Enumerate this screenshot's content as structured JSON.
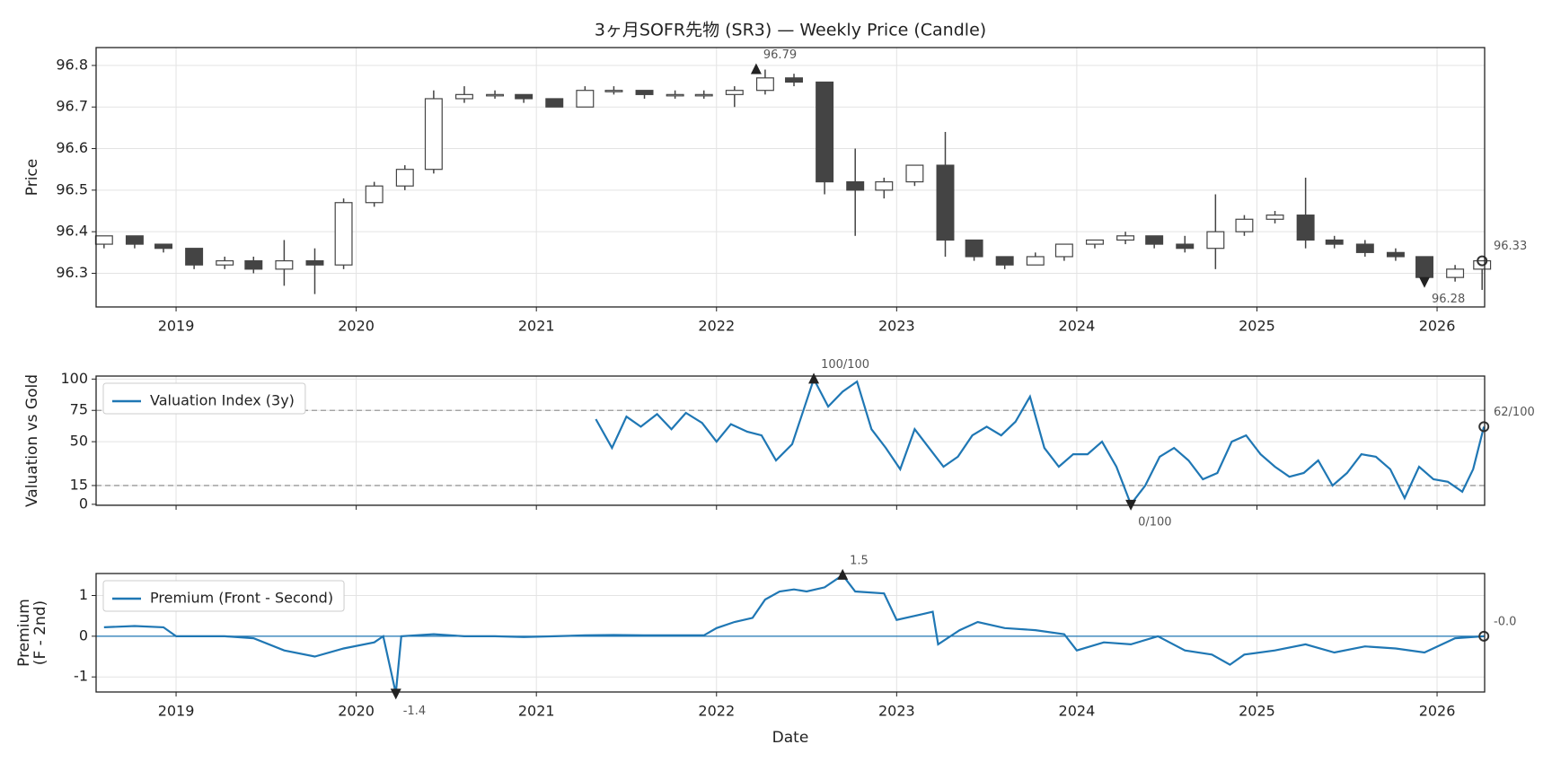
{
  "chart_data": [
    {
      "type": "candlestick",
      "title": "3ヶ月SOFR先物 (SR3) — Weekly Price (Candle)",
      "ylabel": "Price",
      "color": "#444444",
      "x": [
        2018.6,
        2018.77,
        2018.93,
        2019.1,
        2019.27,
        2019.43,
        2019.6,
        2019.77,
        2019.93,
        2020.1,
        2020.27,
        2020.43,
        2020.6,
        2020.77,
        2020.93,
        2021.1,
        2021.27,
        2021.43,
        2021.6,
        2021.77,
        2021.93,
        2022.1,
        2022.27,
        2022.43,
        2022.6,
        2022.77,
        2022.93,
        2023.1,
        2023.27,
        2023.43,
        2023.6,
        2023.77,
        2023.93,
        2024.1,
        2024.27,
        2024.43,
        2024.6,
        2024.77,
        2024.93,
        2025.1,
        2025.27,
        2025.43,
        2025.6,
        2025.77,
        2025.93,
        2026.1,
        2026.25
      ],
      "open": [
        96.37,
        96.39,
        96.37,
        96.36,
        96.32,
        96.33,
        96.31,
        96.33,
        96.32,
        96.47,
        96.51,
        96.55,
        96.72,
        96.73,
        96.73,
        96.72,
        96.7,
        96.74,
        96.74,
        96.73,
        96.73,
        96.73,
        96.74,
        96.77,
        96.76,
        96.52,
        96.5,
        96.52,
        96.56,
        96.38,
        96.34,
        96.32,
        96.34,
        96.37,
        96.38,
        96.39,
        96.37,
        96.36,
        96.4,
        96.43,
        96.44,
        96.38,
        96.37,
        96.35,
        96.34,
        96.29,
        96.31
      ],
      "high": [
        96.39,
        96.39,
        96.37,
        96.36,
        96.34,
        96.34,
        96.38,
        96.36,
        96.48,
        96.52,
        96.56,
        96.74,
        96.75,
        96.74,
        96.73,
        96.72,
        96.75,
        96.75,
        96.74,
        96.74,
        96.74,
        96.75,
        96.79,
        96.78,
        96.76,
        96.6,
        96.53,
        96.56,
        96.64,
        96.38,
        96.34,
        96.35,
        96.37,
        96.38,
        96.4,
        96.39,
        96.39,
        96.49,
        96.44,
        96.45,
        96.53,
        96.39,
        96.38,
        96.36,
        96.34,
        96.32,
        96.33
      ],
      "low": [
        96.36,
        96.36,
        96.35,
        96.31,
        96.31,
        96.3,
        96.27,
        96.25,
        96.31,
        96.46,
        96.5,
        96.54,
        96.71,
        96.72,
        96.71,
        96.7,
        96.7,
        96.73,
        96.72,
        96.72,
        96.72,
        96.7,
        96.73,
        96.75,
        96.49,
        96.39,
        96.48,
        96.51,
        96.34,
        96.33,
        96.31,
        96.32,
        96.33,
        96.36,
        96.37,
        96.36,
        96.35,
        96.31,
        96.39,
        96.42,
        96.36,
        96.36,
        96.34,
        96.33,
        96.28,
        96.28,
        96.26
      ],
      "close": [
        96.39,
        96.37,
        96.36,
        96.32,
        96.33,
        96.31,
        96.33,
        96.32,
        96.47,
        96.51,
        96.55,
        96.72,
        96.73,
        96.73,
        96.72,
        96.7,
        96.74,
        96.74,
        96.73,
        96.73,
        96.73,
        96.74,
        96.77,
        96.76,
        96.52,
        96.5,
        96.52,
        96.56,
        96.38,
        96.34,
        96.32,
        96.34,
        96.37,
        96.38,
        96.39,
        96.37,
        96.36,
        96.4,
        96.43,
        96.44,
        96.38,
        96.37,
        96.35,
        96.34,
        96.29,
        96.31,
        96.33
      ],
      "xlim": [
        2018.556,
        2026.264
      ],
      "xticks": [
        2019,
        2020,
        2021,
        2022,
        2023,
        2024,
        2025,
        2026
      ],
      "ylim": [
        96.219,
        96.843
      ],
      "yticks": [
        96.3,
        96.4,
        96.5,
        96.6,
        96.7,
        96.8
      ],
      "grid": true,
      "show_xtick_labels": true,
      "annotations": [
        {
          "label": "96.79",
          "x": 2022.22,
          "y": 96.79,
          "marker": "up"
        },
        {
          "label": "96.28",
          "x": 2025.93,
          "y": 96.28,
          "marker": "down"
        },
        {
          "label": "96.33",
          "x": 2026.25,
          "y": 96.33,
          "marker": "circle"
        }
      ]
    },
    {
      "type": "line",
      "ylabel": "Valuation vs Gold",
      "series": [
        {
          "name": "Valuation Index (3y)",
          "color": "#1f77b4",
          "x": [
            2021.33,
            2021.42,
            2021.5,
            2021.58,
            2021.67,
            2021.75,
            2021.83,
            2021.92,
            2022.0,
            2022.08,
            2022.17,
            2022.25,
            2022.33,
            2022.42,
            2022.54,
            2022.62,
            2022.7,
            2022.78,
            2022.86,
            2022.94,
            2023.02,
            2023.1,
            2023.18,
            2023.26,
            2023.34,
            2023.42,
            2023.5,
            2023.58,
            2023.66,
            2023.74,
            2023.82,
            2023.9,
            2023.98,
            2024.06,
            2024.14,
            2024.22,
            2024.3,
            2024.38,
            2024.46,
            2024.54,
            2024.62,
            2024.7,
            2024.78,
            2024.86,
            2024.94,
            2025.02,
            2025.1,
            2025.18,
            2025.26,
            2025.34,
            2025.42,
            2025.5,
            2025.58,
            2025.66,
            2025.74,
            2025.82,
            2025.9,
            2025.98,
            2026.06,
            2026.14,
            2026.2,
            2026.26
          ],
          "values": [
            68,
            45,
            70,
            62,
            72,
            60,
            73,
            65,
            50,
            64,
            58,
            55,
            35,
            48,
            100,
            78,
            90,
            98,
            60,
            45,
            28,
            60,
            45,
            30,
            38,
            55,
            62,
            55,
            66,
            86,
            45,
            30,
            40,
            40,
            50,
            30,
            0,
            15,
            38,
            45,
            35,
            20,
            25,
            50,
            55,
            40,
            30,
            22,
            25,
            35,
            15,
            25,
            40,
            38,
            28,
            5,
            30,
            20,
            18,
            10,
            28,
            62
          ]
        }
      ],
      "xlim": [
        2018.556,
        2026.264
      ],
      "xticks": [
        2019,
        2020,
        2021,
        2022,
        2023,
        2024,
        2025,
        2026
      ],
      "ylim": [
        -0.8,
        102.4
      ],
      "yticks": [
        0,
        15,
        50,
        75,
        100
      ],
      "hlines": [
        15,
        75
      ],
      "grid": true,
      "legend": "upper left",
      "show_xtick_labels": false,
      "annotations": [
        {
          "label": "100/100",
          "x": 2022.54,
          "y": 100,
          "marker": "up"
        },
        {
          "label": "0/100",
          "x": 2024.3,
          "y": 0,
          "marker": "down"
        },
        {
          "label": "62/100",
          "x": 2026.26,
          "y": 62,
          "marker": "circle"
        }
      ]
    },
    {
      "type": "line",
      "ylabel": [
        "Premium",
        "(F - 2nd)"
      ],
      "xlabel": "Date",
      "series": [
        {
          "name": "Premium (Front - Second)",
          "color": "#1f77b4",
          "x": [
            2018.6,
            2018.77,
            2018.93,
            2019.0,
            2019.27,
            2019.43,
            2019.6,
            2019.77,
            2019.93,
            2020.1,
            2020.15,
            2020.22,
            2020.25,
            2020.43,
            2020.6,
            2020.77,
            2020.93,
            2021.1,
            2021.27,
            2021.43,
            2021.6,
            2021.77,
            2021.93,
            2022.0,
            2022.1,
            2022.2,
            2022.27,
            2022.35,
            2022.43,
            2022.5,
            2022.6,
            2022.7,
            2022.77,
            2022.93,
            2023.0,
            2023.15,
            2023.2,
            2023.23,
            2023.35,
            2023.45,
            2023.6,
            2023.77,
            2023.93,
            2024.0,
            2024.15,
            2024.3,
            2024.45,
            2024.6,
            2024.75,
            2024.85,
            2024.93,
            2025.1,
            2025.27,
            2025.43,
            2025.6,
            2025.77,
            2025.93,
            2026.1,
            2026.26
          ],
          "values": [
            0.22,
            0.25,
            0.22,
            0.0,
            0.0,
            -0.05,
            -0.35,
            -0.5,
            -0.3,
            -0.15,
            0.0,
            -1.4,
            0.0,
            0.05,
            0.0,
            0.0,
            -0.02,
            0.0,
            0.02,
            0.03,
            0.02,
            0.02,
            0.02,
            0.2,
            0.35,
            0.45,
            0.9,
            1.1,
            1.15,
            1.1,
            1.2,
            1.5,
            1.1,
            1.05,
            0.4,
            0.55,
            0.6,
            -0.2,
            0.15,
            0.35,
            0.2,
            0.15,
            0.05,
            -0.35,
            -0.15,
            -0.2,
            0.0,
            -0.35,
            -0.45,
            -0.7,
            -0.45,
            -0.35,
            -0.2,
            -0.4,
            -0.25,
            -0.3,
            -0.4,
            -0.05,
            0.0
          ]
        }
      ],
      "xlim": [
        2018.556,
        2026.264
      ],
      "xticks": [
        2019,
        2020,
        2021,
        2022,
        2023,
        2024,
        2025,
        2026
      ],
      "ylim": [
        -1.37,
        1.54
      ],
      "yticks": [
        -1,
        0,
        1
      ],
      "hlines": [
        0
      ],
      "grid": true,
      "legend": "upper left",
      "show_xtick_labels": true,
      "annotations": [
        {
          "label": "1.5",
          "x": 2022.7,
          "y": 1.5,
          "marker": "up"
        },
        {
          "label": "-1.4",
          "x": 2020.22,
          "y": -1.4,
          "marker": "down"
        },
        {
          "label": "-0.0",
          "x": 2026.26,
          "y": 0.0,
          "marker": "circle"
        }
      ]
    }
  ]
}
